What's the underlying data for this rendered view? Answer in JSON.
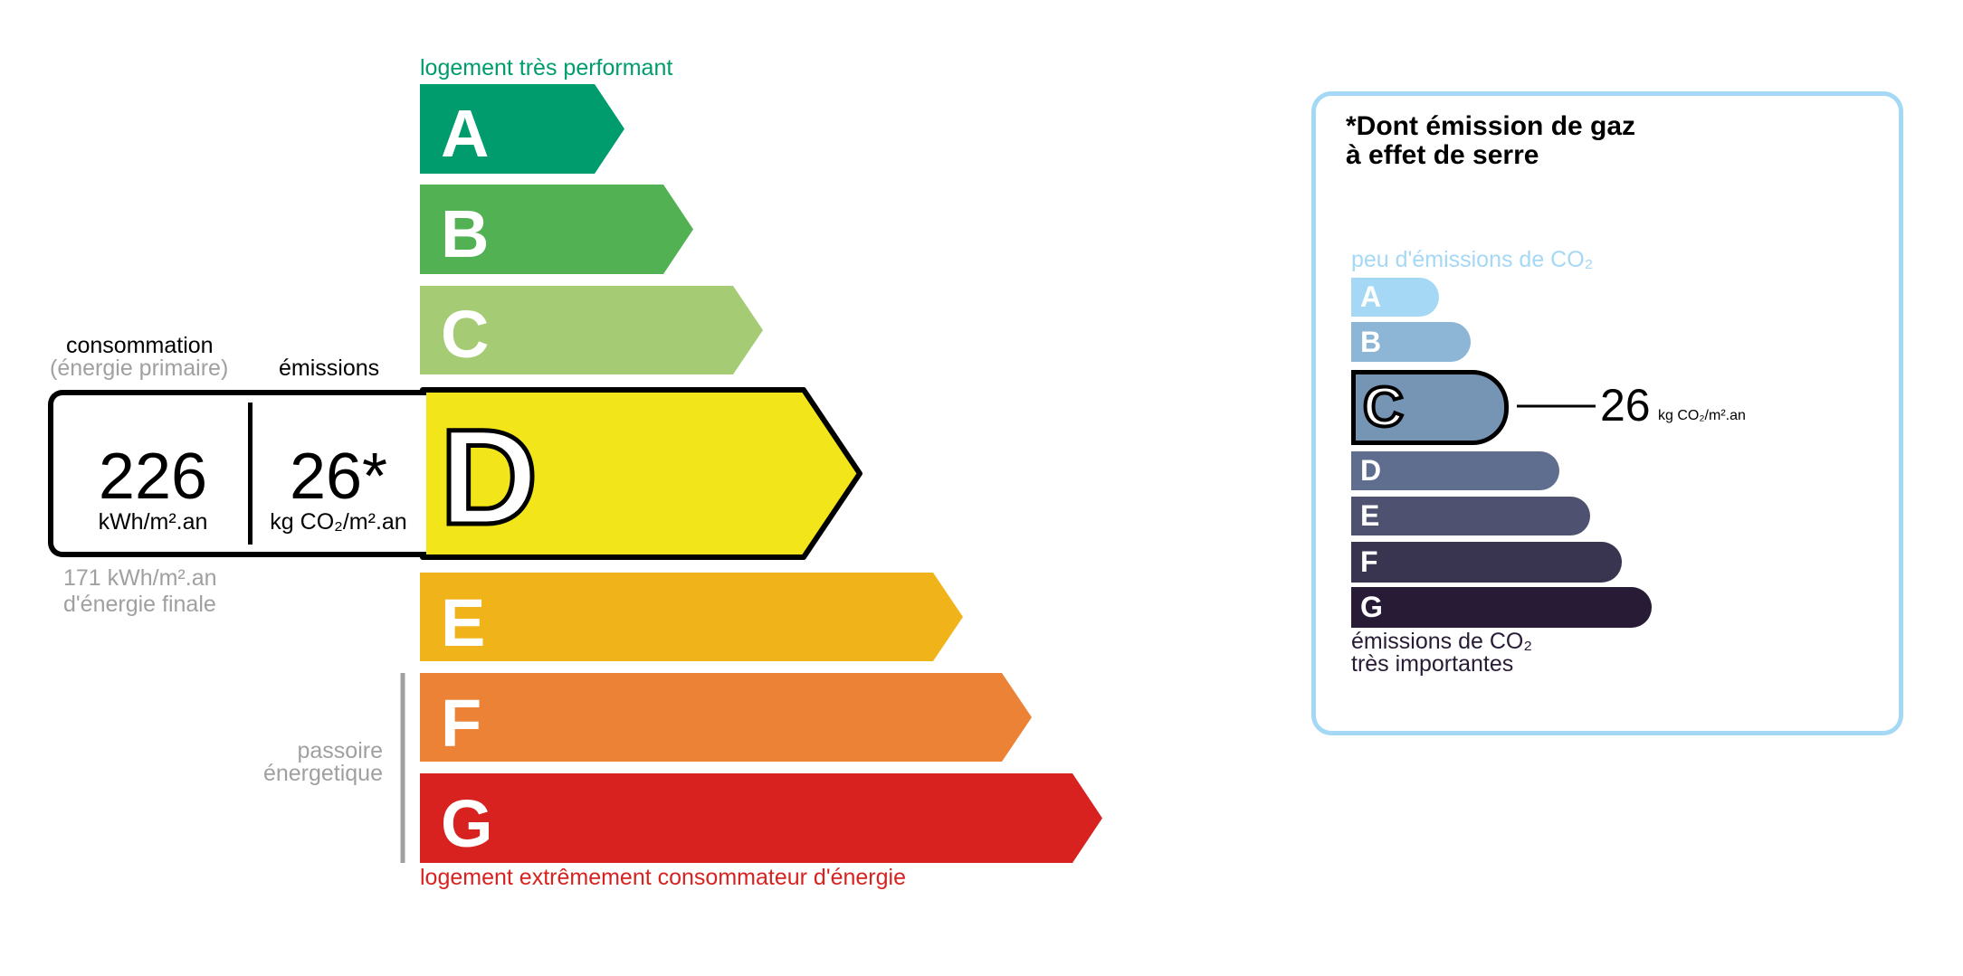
{
  "energy": {
    "top_label": "logement très performant",
    "bottom_label": "logement extrêmement consommateur d'énergie",
    "passoire_label": [
      "passoire",
      "énergetique"
    ],
    "classes": [
      {
        "letter": "A",
        "color": "#009c6d"
      },
      {
        "letter": "B",
        "color": "#52b153"
      },
      {
        "letter": "C",
        "color": "#a5cc74"
      },
      {
        "letter": "D",
        "color": "#f2e61b"
      },
      {
        "letter": "E",
        "color": "#f0b41a"
      },
      {
        "letter": "F",
        "color": "#eb8235"
      },
      {
        "letter": "G",
        "color": "#d7221f"
      }
    ],
    "current_class": "D",
    "consumption_header": "consommation",
    "consumption_sub": "(énergie primaire)",
    "emissions_header": "émissions",
    "consumption_value": "226",
    "consumption_unit": "kWh/m².an",
    "emissions_value": "26*",
    "emissions_unit": "kg CO₂/m².an",
    "final_energy": "171 kWh/m².an",
    "final_energy_label": "d'énergie finale"
  },
  "ghg": {
    "title_line1": "*Dont émission de gaz",
    "title_line2": "à effet de serre",
    "top_label": "peu d'émissions de CO₂",
    "bottom_label_1": "émissions de CO₂",
    "bottom_label_2": "très importantes",
    "classes": [
      {
        "letter": "A",
        "color": "#a4d8f5"
      },
      {
        "letter": "B",
        "color": "#8db5d5"
      },
      {
        "letter": "C",
        "color": "#7694b4"
      },
      {
        "letter": "D",
        "color": "#5f6e8e"
      },
      {
        "letter": "E",
        "color": "#4e5170"
      },
      {
        "letter": "F",
        "color": "#393551"
      },
      {
        "letter": "G",
        "color": "#281b35"
      }
    ],
    "current_class": "C",
    "value": "26",
    "unit": "kg CO₂/m².an"
  }
}
